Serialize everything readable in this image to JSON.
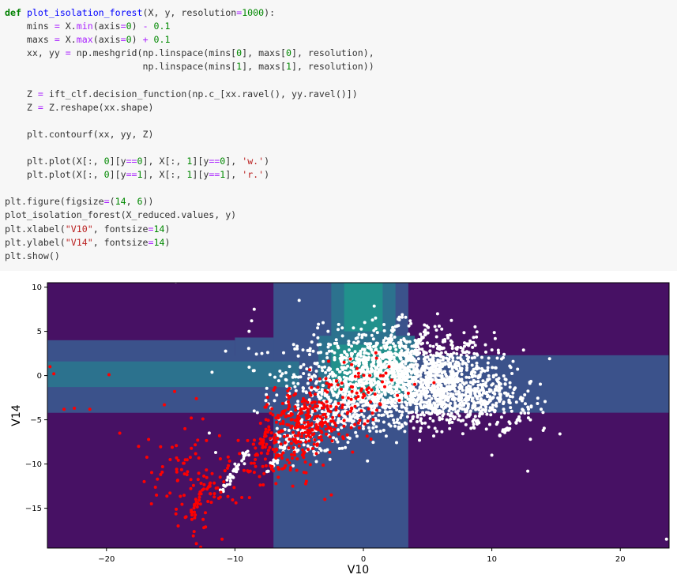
{
  "code_lines": [
    "def plot_isolation_forest(X, y, resolution=1000):",
    "    mins = X.min(axis=0) - 0.1",
    "    maxs = X.max(axis=0) + 0.1",
    "    xx, yy = np.meshgrid(np.linspace(mins[0], maxs[0], resolution),",
    "                         np.linspace(mins[1], maxs[1], resolution))",
    "",
    "    Z = ift_clf.decision_function(np.c_[xx.ravel(), yy.ravel()])",
    "    Z = Z.reshape(xx.shape)",
    "",
    "    plt.contourf(xx, yy, Z)",
    "",
    "    plt.plot(X[:, 0][y==0], X[:, 1][y==0], 'w.')",
    "    plt.plot(X[:, 0][y==1], X[:, 1][y==1], 'r.')",
    "",
    "plt.figure(figsize=(14, 6))",
    "plot_isolation_forest(X_reduced.values, y)",
    "plt.xlabel(\"V10\", fontsize=14)",
    "plt.ylabel(\"V14\", fontsize=14)",
    "plt.show()"
  ],
  "chart_data": {
    "type": "scatter",
    "xlabel": "V10",
    "ylabel": "V14",
    "xlim": [
      -24.6,
      23.8
    ],
    "ylim": [
      -19.5,
      10.5
    ],
    "xticks": [
      -20,
      -10,
      0,
      10,
      20
    ],
    "yticks": [
      10,
      5,
      0,
      -5,
      -10,
      -15
    ],
    "grid": false,
    "colors": {
      "bg_low": "#471164",
      "mid1": "#3b528b",
      "mid2": "#2c728e",
      "mid3": "#21918c",
      "normal": "#ffffff",
      "fraud": "#ff0000"
    },
    "regions": [
      {
        "x0": -24.6,
        "x1": 23.8,
        "y0": -4.2,
        "y1": 2.3,
        "level": 1
      },
      {
        "x0": -24.6,
        "x1": -10,
        "y0": -4.2,
        "y1": 4.0,
        "level": 1
      },
      {
        "x0": -10,
        "x1": -6,
        "y0": -4.2,
        "y1": 4.3,
        "level": 1
      },
      {
        "x0": -7,
        "x1": 3.5,
        "y0": -19.5,
        "y1": 10.5,
        "level": 1
      },
      {
        "x0": -24.6,
        "x1": -5,
        "y0": -1.3,
        "y1": 1.6,
        "level": 2
      },
      {
        "x0": -2.5,
        "x1": 2.5,
        "y0": 4.0,
        "y1": 10.5,
        "level": 2
      },
      {
        "x0": -3.5,
        "x1": 4.0,
        "y0": -3.0,
        "y1": 4.5,
        "level": 2
      },
      {
        "x0": -1.5,
        "x1": 1.5,
        "y0": 5.0,
        "y1": 10.5,
        "level": 3
      },
      {
        "x0": -2.5,
        "x1": 3.0,
        "y0": -2.0,
        "y1": 3.5,
        "level": 3
      }
    ],
    "series": [
      {
        "name": "",
        "color": "#ffffff",
        "clusters": [
          {
            "cx": 2.5,
            "cy": 0.0,
            "sx": 3.8,
            "sy": 2.4,
            "n": 1500
          },
          {
            "cx": 7.0,
            "cy": -2.5,
            "sx": 2.5,
            "sy": 1.6,
            "n": 500
          },
          {
            "cx": -1.5,
            "cy": -3.5,
            "sx": 1.8,
            "sy": 1.6,
            "n": 250
          },
          {
            "cx": -4.5,
            "cy": -7.0,
            "sx": 1.2,
            "sy": 1.5,
            "n": 80
          }
        ],
        "streaks": [
          {
            "x0": 0.5,
            "y0": -1.0,
            "x1": 3.0,
            "y1": 7.0,
            "n": 50
          },
          {
            "x0": 2.5,
            "y0": -1.0,
            "x1": 5.0,
            "y1": 5.5,
            "n": 50
          },
          {
            "x0": 4.5,
            "y0": -2.0,
            "x1": 6.5,
            "y1": 4.5,
            "n": 45
          },
          {
            "x0": 6.0,
            "y0": -3.0,
            "x1": 8.0,
            "y1": 3.5,
            "n": 45
          },
          {
            "x0": -11.0,
            "y0": -13.0,
            "x1": -9.0,
            "y1": -8.5,
            "n": 40
          },
          {
            "x0": -7.5,
            "y0": -11.0,
            "x1": -5.5,
            "y1": -6.5,
            "n": 35
          },
          {
            "x0": 8.5,
            "y0": -6.0,
            "x1": 11.0,
            "y1": 0.0,
            "n": 40
          },
          {
            "x0": 10.5,
            "y0": -7.0,
            "x1": 13.0,
            "y1": -3.5,
            "n": 30
          }
        ],
        "extra": [
          [
            -8.5,
            7.5
          ],
          [
            -8.7,
            6.2
          ],
          [
            -8.9,
            5.0
          ],
          [
            -7.9,
            2.5
          ],
          [
            -6.5,
            0.5
          ],
          [
            -7.4,
            -3.2
          ],
          [
            -8.5,
            -4.0
          ],
          [
            -12.0,
            -6.5
          ],
          [
            -11.5,
            -8.7
          ],
          [
            -10.0,
            -10.0
          ],
          [
            -5.0,
            8.5
          ],
          [
            -3.5,
            5.8
          ],
          [
            13.0,
            -5.0
          ],
          [
            14.0,
            -6.2
          ],
          [
            15.3,
            -6.6
          ],
          [
            13.0,
            -7.2
          ],
          [
            10.0,
            -9.0
          ],
          [
            12.8,
            -10.8
          ],
          [
            23.6,
            -18.5
          ],
          [
            -14.6,
            10.6
          ],
          [
            0.0,
            -6.0
          ],
          [
            2.0,
            -5.5
          ],
          [
            -3.0,
            -8.5
          ],
          [
            -2.0,
            -7.5
          ]
        ]
      },
      {
        "name": "",
        "color": "#ff0000",
        "clusters": [
          {
            "cx": -4.0,
            "cy": -5.0,
            "sx": 1.6,
            "sy": 1.6,
            "n": 220
          },
          {
            "cx": -1.0,
            "cy": -1.5,
            "sx": 1.5,
            "sy": 1.5,
            "n": 70
          },
          {
            "cx": -6.5,
            "cy": -9.0,
            "sx": 1.5,
            "sy": 1.8,
            "n": 100
          },
          {
            "cx": -12.5,
            "cy": -13.0,
            "sx": 1.3,
            "sy": 2.2,
            "n": 70
          },
          {
            "cx": -15.5,
            "cy": -9.5,
            "sx": 1.8,
            "sy": 2.0,
            "n": 30
          }
        ],
        "streaks": [
          {
            "x0": -9.0,
            "y0": -11.0,
            "x1": -7.5,
            "y1": -6.0,
            "n": 25
          },
          {
            "x0": -13.5,
            "y0": -16.0,
            "x1": -12.0,
            "y1": -12.0,
            "n": 20
          }
        ],
        "extra": [
          [
            -24.4,
            1.0
          ],
          [
            -24.1,
            0.2
          ],
          [
            -19.8,
            0.1
          ],
          [
            -22.5,
            -3.7
          ],
          [
            -21.3,
            -3.8
          ],
          [
            -23.3,
            -3.8
          ],
          [
            -15.5,
            -3.3
          ],
          [
            -14.7,
            -1.8
          ],
          [
            -13.0,
            -2.6
          ],
          [
            -13.4,
            -4.8
          ],
          [
            -11.2,
            -6.8
          ],
          [
            -12.5,
            -4.9
          ],
          [
            -2.5,
            -13.5
          ],
          [
            -3.0,
            -14.0
          ],
          [
            -11.0,
            -18.5
          ],
          [
            -13.0,
            -19.0
          ],
          [
            -12.3,
            -15.5
          ],
          [
            -16.5,
            -14.5
          ],
          [
            -17.5,
            -8.0
          ],
          [
            -5.5,
            -12.5
          ],
          [
            2.0,
            1.0
          ],
          [
            2.2,
            -0.5
          ],
          [
            -1.5,
            1.5
          ],
          [
            3.5,
            -2.0
          ],
          [
            4.0,
            -1.0
          ],
          [
            0.5,
            0.0
          ],
          [
            -0.5,
            0.8
          ],
          [
            5.5,
            -0.8
          ],
          [
            2.8,
            -2.8
          ]
        ]
      }
    ]
  }
}
